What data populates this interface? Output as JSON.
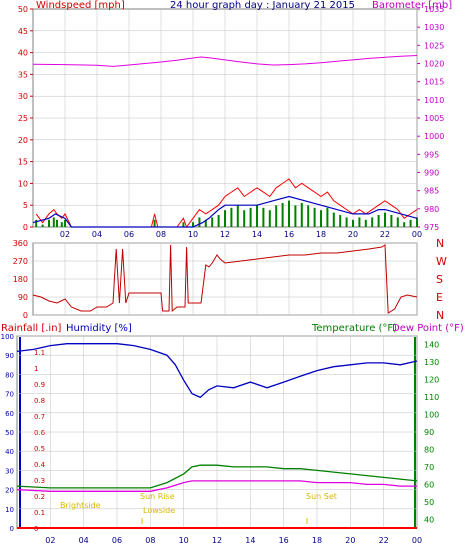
{
  "title": "24 hour graph day : January 21 2015",
  "colors": {
    "wind": "#ff0000",
    "gust": "#ff0000",
    "avgwind": "#0000c0",
    "windgreen": "#008000",
    "baro": "#e000e0",
    "winddir": "#c00000",
    "rain": "#ff0000",
    "humidity": "#0000c0",
    "temp": "#008000",
    "dew": "#e000e0",
    "sun": "#e0c000",
    "grid": "#c0c0c0"
  },
  "hour_labels": [
    "02",
    "04",
    "06",
    "08",
    "10",
    "12",
    "14",
    "16",
    "18",
    "20",
    "22",
    "00"
  ],
  "panel1": {
    "left_label": "Windspeed [mph]",
    "right_label": "Barometer [mb]",
    "left_ticks": [
      "50",
      "45",
      "40",
      "35",
      "30",
      "25",
      "20",
      "15",
      "10",
      "5",
      "0"
    ],
    "right_ticks": [
      "1035",
      "1030",
      "1025",
      "1020",
      "1015",
      "1010",
      "1005",
      "1000",
      "995",
      "990",
      "985",
      "980",
      "975"
    ]
  },
  "panel2": {
    "left_ticks": [
      "360",
      "270",
      "180",
      "90",
      "0"
    ],
    "right_labels": [
      "N",
      "W",
      "S",
      "E",
      "N"
    ]
  },
  "panel3": {
    "rain_label": "Rainfall [.in]",
    "humidity_label": "Humidity [%]",
    "temp_label": "Temperature (°F)",
    "dew_label": "Dew Point (°F)",
    "humidity_ticks": [
      "100",
      "90",
      "80",
      "70",
      "60",
      "50",
      "40",
      "30",
      "20",
      "10",
      "0"
    ],
    "rain_ticks": [
      "1.1",
      "1",
      "0.9",
      "0.8",
      "0.7",
      "0.6",
      "0.5",
      "0.4",
      "0.3",
      "0.2",
      "0.1",
      "0"
    ],
    "temp_ticks": [
      "140",
      "130",
      "120",
      "110",
      "100",
      "90",
      "80",
      "70",
      "60",
      "50",
      "40"
    ],
    "sun_labels": {
      "brightside": "Brightside",
      "sunrise": "Sun Rise",
      "lowside": "Lowside",
      "sunset": "Sun Set"
    }
  },
  "chart_data": [
    {
      "type": "line",
      "title": "24 hour graph day : January 21 2015",
      "xlabel": "",
      "ylabel": "Windspeed [mph]",
      "ylim": [
        0,
        50
      ],
      "y2label": "Barometer [mb]",
      "y2lim": [
        975,
        1035
      ],
      "x_hours": [
        0,
        24
      ],
      "series": [
        {
          "name": "Windspeed [mph]",
          "points": [
            [
              0.2,
              3
            ],
            [
              0.6,
              1
            ],
            [
              1,
              3
            ],
            [
              1.3,
              4
            ],
            [
              1.5,
              3
            ],
            [
              1.8,
              2
            ],
            [
              2,
              3
            ],
            [
              2.4,
              0
            ],
            [
              3,
              0
            ],
            [
              5,
              0
            ],
            [
              7,
              0
            ],
            [
              7.4,
              0
            ],
            [
              7.6,
              3
            ],
            [
              7.8,
              0
            ],
            [
              9,
              0
            ],
            [
              9.4,
              2
            ],
            [
              9.6,
              0
            ],
            [
              10,
              2
            ],
            [
              10.4,
              4
            ],
            [
              10.8,
              3
            ],
            [
              11.2,
              4
            ],
            [
              11.6,
              5
            ],
            [
              12,
              7
            ],
            [
              12.4,
              8
            ],
            [
              12.8,
              9
            ],
            [
              13.2,
              7
            ],
            [
              13.6,
              8
            ],
            [
              14,
              9
            ],
            [
              14.4,
              8
            ],
            [
              14.8,
              7
            ],
            [
              15.2,
              9
            ],
            [
              15.6,
              10
            ],
            [
              16,
              11
            ],
            [
              16.4,
              9
            ],
            [
              16.8,
              10
            ],
            [
              17.2,
              9
            ],
            [
              17.6,
              8
            ],
            [
              18,
              7
            ],
            [
              18.4,
              8
            ],
            [
              18.8,
              6
            ],
            [
              19.2,
              5
            ],
            [
              19.6,
              4
            ],
            [
              20,
              3
            ],
            [
              20.4,
              4
            ],
            [
              20.8,
              3
            ],
            [
              21.2,
              4
            ],
            [
              21.6,
              5
            ],
            [
              22,
              6
            ],
            [
              22.4,
              5
            ],
            [
              22.8,
              4
            ],
            [
              23.2,
              2
            ],
            [
              23.6,
              3
            ],
            [
              24,
              4
            ]
          ]
        },
        {
          "name": "Average wind",
          "points": [
            [
              0,
              1
            ],
            [
              1,
              2
            ],
            [
              1.4,
              3
            ],
            [
              2,
              2
            ],
            [
              2.4,
              0
            ],
            [
              10,
              0
            ],
            [
              10.6,
              1
            ],
            [
              11,
              2
            ],
            [
              11.6,
              4
            ],
            [
              12,
              5
            ],
            [
              13,
              5
            ],
            [
              14,
              5
            ],
            [
              15,
              6
            ],
            [
              16,
              7
            ],
            [
              17,
              6
            ],
            [
              18,
              5
            ],
            [
              19,
              4
            ],
            [
              20,
              3
            ],
            [
              21,
              3
            ],
            [
              21.6,
              4
            ],
            [
              22,
              4
            ],
            [
              23,
              3
            ],
            [
              24,
              2
            ]
          ]
        },
        {
          "name": "Barometer [mb]",
          "axis": "right",
          "points": [
            [
              0,
              1019.8
            ],
            [
              2,
              1019.7
            ],
            [
              4,
              1019.5
            ],
            [
              5,
              1019.2
            ],
            [
              6,
              1019.6
            ],
            [
              7,
              1020.0
            ],
            [
              8,
              1020.4
            ],
            [
              9,
              1020.9
            ],
            [
              10,
              1021.5
            ],
            [
              10.5,
              1021.8
            ],
            [
              11,
              1021.6
            ],
            [
              12,
              1021.0
            ],
            [
              13,
              1020.4
            ],
            [
              14,
              1019.9
            ],
            [
              15,
              1019.6
            ],
            [
              16,
              1019.7
            ],
            [
              17,
              1019.9
            ],
            [
              18,
              1020.2
            ],
            [
              19,
              1020.6
            ],
            [
              20,
              1021.0
            ],
            [
              21,
              1021.4
            ],
            [
              22,
              1021.7
            ],
            [
              23,
              1022.0
            ],
            [
              24,
              1022.2
            ]
          ]
        }
      ]
    },
    {
      "type": "line",
      "ylabel": "Wind direction",
      "ylim": [
        0,
        360
      ],
      "x_hours": [
        0,
        24
      ],
      "series": [
        {
          "name": "Wind direction",
          "points": [
            [
              0,
              100
            ],
            [
              0.5,
              90
            ],
            [
              1,
              70
            ],
            [
              1.5,
              60
            ],
            [
              2,
              80
            ],
            [
              2.4,
              40
            ],
            [
              3,
              20
            ],
            [
              3.6,
              20
            ],
            [
              4,
              40
            ],
            [
              4.6,
              40
            ],
            [
              5,
              60
            ],
            [
              5.2,
              330
            ],
            [
              5.4,
              60
            ],
            [
              5.6,
              330
            ],
            [
              5.8,
              60
            ],
            [
              6,
              110
            ],
            [
              7,
              110
            ],
            [
              8,
              110
            ],
            [
              8.1,
              20
            ],
            [
              8.5,
              20
            ],
            [
              8.6,
              350
            ],
            [
              8.7,
              20
            ],
            [
              9,
              40
            ],
            [
              9.5,
              40
            ],
            [
              9.6,
              340
            ],
            [
              9.7,
              60
            ],
            [
              10,
              60
            ],
            [
              10.5,
              60
            ],
            [
              10.8,
              250
            ],
            [
              11,
              240
            ],
            [
              11.2,
              260
            ],
            [
              11.5,
              300
            ],
            [
              11.7,
              280
            ],
            [
              12,
              260
            ],
            [
              13,
              270
            ],
            [
              14,
              280
            ],
            [
              15,
              290
            ],
            [
              16,
              300
            ],
            [
              17,
              300
            ],
            [
              18,
              310
            ],
            [
              19,
              310
            ],
            [
              20,
              320
            ],
            [
              21,
              330
            ],
            [
              21.8,
              340
            ],
            [
              22,
              350
            ],
            [
              22.2,
              10
            ],
            [
              22.6,
              30
            ],
            [
              23,
              90
            ],
            [
              23.4,
              100
            ],
            [
              24,
              90
            ]
          ]
        }
      ]
    },
    {
      "type": "line",
      "ylabel": "Humidity [%]",
      "ylim": [
        0,
        100
      ],
      "y2label": "Temperature (°F)",
      "y2lim": [
        35,
        145
      ],
      "x_hours": [
        0,
        24
      ],
      "series": [
        {
          "name": "Humidity [%]",
          "points": [
            [
              0,
              92
            ],
            [
              1,
              93
            ],
            [
              2,
              95
            ],
            [
              3,
              96
            ],
            [
              4,
              96
            ],
            [
              5,
              96
            ],
            [
              6,
              96
            ],
            [
              7,
              95
            ],
            [
              8,
              93
            ],
            [
              9,
              90
            ],
            [
              9.5,
              85
            ],
            [
              10,
              77
            ],
            [
              10.5,
              70
            ],
            [
              11,
              68
            ],
            [
              11.5,
              72
            ],
            [
              12,
              74
            ],
            [
              13,
              73
            ],
            [
              14,
              76
            ],
            [
              15,
              73
            ],
            [
              16,
              76
            ],
            [
              17,
              79
            ],
            [
              18,
              82
            ],
            [
              19,
              84
            ],
            [
              20,
              85
            ],
            [
              21,
              86
            ],
            [
              22,
              86
            ],
            [
              23,
              85
            ],
            [
              24,
              87
            ]
          ]
        },
        {
          "name": "Temperature (°F)",
          "axis": "right",
          "points": [
            [
              0,
              59
            ],
            [
              2,
              58
            ],
            [
              4,
              58
            ],
            [
              6,
              58
            ],
            [
              8,
              58
            ],
            [
              9,
              61
            ],
            [
              10,
              66
            ],
            [
              10.5,
              70
            ],
            [
              11,
              71
            ],
            [
              12,
              71
            ],
            [
              13,
              70
            ],
            [
              14,
              70
            ],
            [
              15,
              70
            ],
            [
              16,
              69
            ],
            [
              17,
              69
            ],
            [
              18,
              68
            ],
            [
              19,
              67
            ],
            [
              20,
              66
            ],
            [
              21,
              65
            ],
            [
              22,
              64
            ],
            [
              23,
              63
            ],
            [
              24,
              62
            ]
          ]
        },
        {
          "name": "Dew Point (°F)",
          "axis": "right",
          "points": [
            [
              0,
              57
            ],
            [
              2,
              56
            ],
            [
              4,
              56
            ],
            [
              6,
              56
            ],
            [
              8,
              56
            ],
            [
              9,
              58
            ],
            [
              10,
              61
            ],
            [
              10.5,
              62
            ],
            [
              11,
              62
            ],
            [
              12,
              62
            ],
            [
              13,
              62
            ],
            [
              14,
              62
            ],
            [
              15,
              62
            ],
            [
              16,
              62
            ],
            [
              17,
              62
            ],
            [
              18,
              61
            ],
            [
              19,
              61
            ],
            [
              20,
              61
            ],
            [
              21,
              60
            ],
            [
              22,
              60
            ],
            [
              23,
              59
            ],
            [
              24,
              59
            ]
          ]
        },
        {
          "name": "Rainfall [.in]",
          "points": [
            [
              0,
              0
            ],
            [
              24,
              0
            ]
          ]
        }
      ]
    }
  ]
}
